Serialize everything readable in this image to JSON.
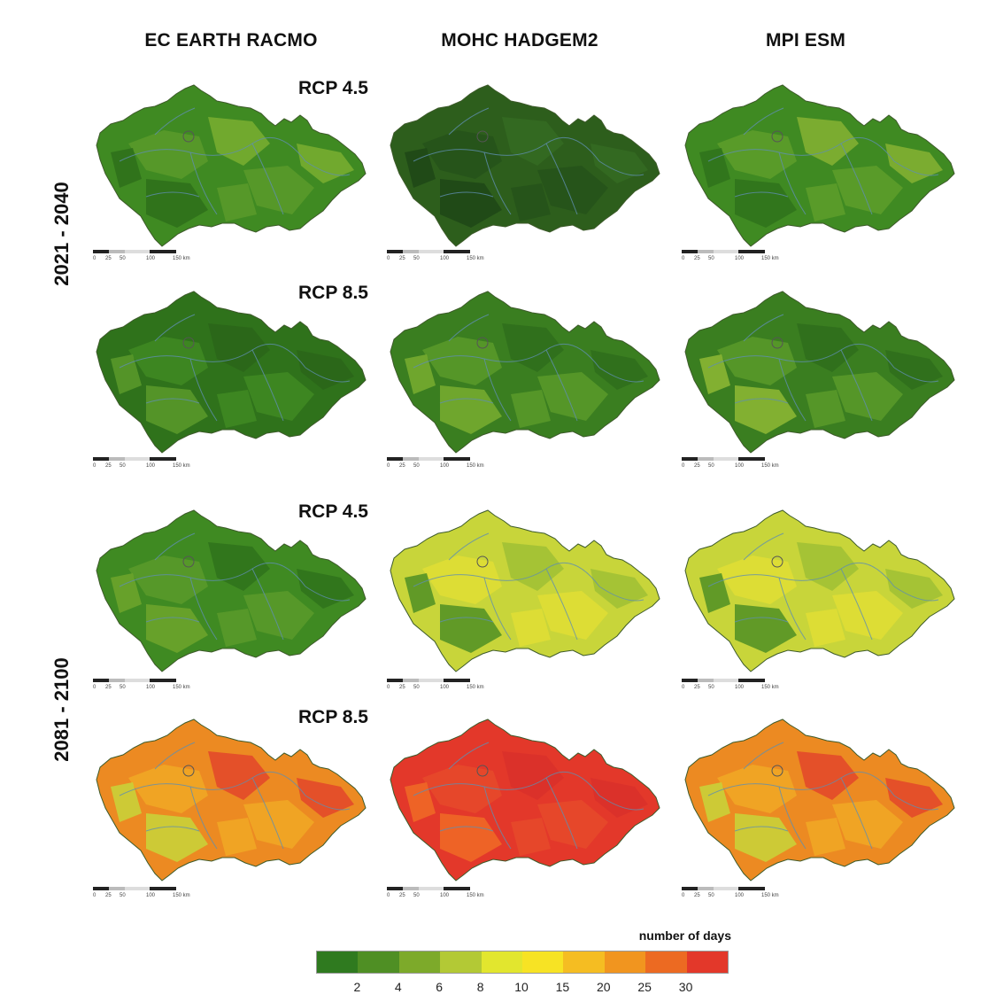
{
  "columns": [
    "EC EARTH RACMO",
    "MOHC HADGEM2",
    "MPI ESM"
  ],
  "periods": [
    "2021 - 2040",
    "2081 - 2100"
  ],
  "scenario_labels": [
    "RCP 4.5",
    "RCP 8.5",
    "RCP 4.5",
    "RCP 8.5"
  ],
  "scale_labels": [
    "0",
    "25",
    "50",
    "100",
    "150 km"
  ],
  "legend": {
    "title": "number of days",
    "ticks": [
      "2",
      "4",
      "6",
      "8",
      "10",
      "15",
      "20",
      "25",
      "30"
    ],
    "colors": [
      "#2f7a1f",
      "#4f8f24",
      "#7daa2a",
      "#b3c935",
      "#e2e62e",
      "#f7e324",
      "#f5bd22",
      "#f1951f",
      "#ec6a22",
      "#e3382a"
    ]
  },
  "maps": [
    {
      "model": "EC EARTH RACMO",
      "period": "2021 - 2040",
      "scenario": "RCP 4.5",
      "palette": [
        "#3f8a22",
        "#5a9a2a",
        "#7aae30",
        "#2e6e1a"
      ]
    },
    {
      "model": "MOHC HADGEM2",
      "period": "2021 - 2040",
      "scenario": "RCP 4.5",
      "palette": [
        "#2d5e1c",
        "#26521a",
        "#356b22",
        "#1f4716"
      ]
    },
    {
      "model": "MPI ESM",
      "period": "2021 - 2040",
      "scenario": "RCP 4.5",
      "palette": [
        "#3f8a22",
        "#5e9d2a",
        "#86b233",
        "#2f721b"
      ]
    },
    {
      "model": "EC EARTH RACMO",
      "period": "2021 - 2040",
      "scenario": "RCP 8.5",
      "palette": [
        "#2f721b",
        "#3f8a22",
        "#2a6519",
        "#5a9a2a"
      ]
    },
    {
      "model": "MOHC HADGEM2",
      "period": "2021 - 2040",
      "scenario": "RCP 8.5",
      "palette": [
        "#3a7e20",
        "#5a9a2a",
        "#2f6d1c",
        "#79ad30"
      ]
    },
    {
      "model": "MPI ESM",
      "period": "2021 - 2040",
      "scenario": "RCP 8.5",
      "palette": [
        "#3a7e20",
        "#5a9a2a",
        "#2f6d1c",
        "#8fb835"
      ]
    },
    {
      "model": "EC EARTH RACMO",
      "period": "2081 - 2100",
      "scenario": "RCP 4.5",
      "palette": [
        "#3f8a22",
        "#5a9a2a",
        "#2f721b",
        "#6ea52c"
      ]
    },
    {
      "model": "MOHC HADGEM2",
      "period": "2081 - 2100",
      "scenario": "RCP 4.5",
      "palette": [
        "#c8d53a",
        "#e0de35",
        "#9fc035",
        "#4f8f24"
      ]
    },
    {
      "model": "MPI ESM",
      "period": "2081 - 2100",
      "scenario": "RCP 4.5",
      "palette": [
        "#c8d53a",
        "#e0de35",
        "#9fc035",
        "#4f8f24"
      ]
    },
    {
      "model": "EC EARTH RACMO",
      "period": "2081 - 2100",
      "scenario": "RCP 8.5",
      "palette": [
        "#ec8a22",
        "#f1a824",
        "#e3452a",
        "#c8d53a"
      ]
    },
    {
      "model": "MOHC HADGEM2",
      "period": "2081 - 2100",
      "scenario": "RCP 8.5",
      "palette": [
        "#e3382a",
        "#e64a2a",
        "#d9302a",
        "#f06b26"
      ]
    },
    {
      "model": "MPI ESM",
      "period": "2081 - 2100",
      "scenario": "RCP 8.5",
      "palette": [
        "#ec8a22",
        "#f1a824",
        "#e3452a",
        "#c8d53a"
      ]
    }
  ]
}
